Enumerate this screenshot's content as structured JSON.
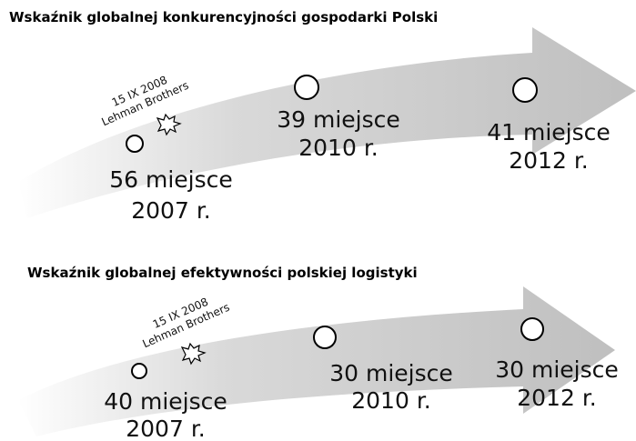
{
  "panels": [
    {
      "title": "Wskaźnik globalnej konkurencyjności gospodarki Polski",
      "annotation": [
        "15 IX 2008",
        "Lehman Brothers"
      ],
      "points": [
        {
          "rank": "56 miejsce",
          "year": "2007 r."
        },
        {
          "rank": "39 miejsce",
          "year": "2010 r."
        },
        {
          "rank": "41 miejsce",
          "year": "2012 r."
        }
      ]
    },
    {
      "title": "Wskaźnik globalnej efektywności polskiej logistyki",
      "annotation": [
        "15 IX 2008",
        "Lehman Brothers"
      ],
      "points": [
        {
          "rank": "40 miejsce",
          "year": "2007 r."
        },
        {
          "rank": "30 miejsce",
          "year": "2010 r."
        },
        {
          "rank": "30 miejsce",
          "year": "2012 r."
        }
      ]
    }
  ]
}
